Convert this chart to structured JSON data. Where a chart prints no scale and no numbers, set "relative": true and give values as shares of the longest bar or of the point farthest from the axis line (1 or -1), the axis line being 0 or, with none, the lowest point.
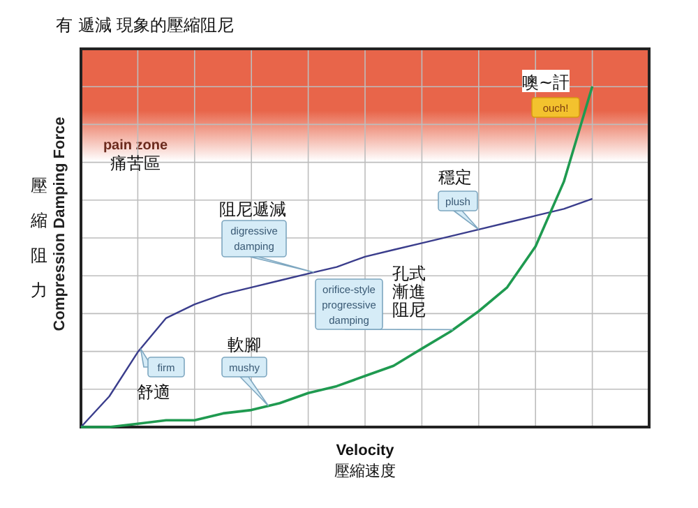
{
  "chart_data": {
    "type": "line",
    "relative": true,
    "title": "有 遞減 現象的壓縮阻尼",
    "xlabel": "Velocity\n壓縮速度",
    "ylabel": "Compression Damping Force",
    "grid": true,
    "marker": "none",
    "line_style": "solid",
    "categories": [
      null,
      null,
      null,
      null,
      null,
      null,
      null,
      null,
      null,
      null,
      null,
      null,
      null,
      null,
      null,
      null,
      null,
      null,
      null
    ],
    "series": [
      {
        "color": "#3a3d8c",
        "values": [
          0,
          0.09,
          0.22,
          0.32,
          0.36,
          0.39,
          0.41,
          0.43,
          0.45,
          0.47,
          0.5,
          0.52,
          0.54,
          0.56,
          0.58,
          0.6,
          0.62,
          0.64,
          0.67
        ]
      },
      {
        "color": "#1f9a50",
        "values": [
          0,
          0,
          0.01,
          0.02,
          0.02,
          0.04,
          0.05,
          0.07,
          0.1,
          0.12,
          0.15,
          0.18,
          0.23,
          0.28,
          0.34,
          0.41,
          0.53,
          0.72,
          1
        ]
      }
    ],
    "bands": [
      {
        "axis": "y",
        "from": 0.78,
        "to": 1.11,
        "label": "pain zone",
        "color": "#e8654a"
      }
    ],
    "annotations": [
      "舒適",
      "firm",
      "軟腳",
      "mushy",
      "阻尼遞減",
      "digressive damping",
      "孔式漸進阻尼",
      "orifice-style progressive damping",
      "穩定",
      "plush",
      "噢~訐",
      "ouch!",
      "痛苦區",
      "壓縮阻力"
    ]
  }
}
